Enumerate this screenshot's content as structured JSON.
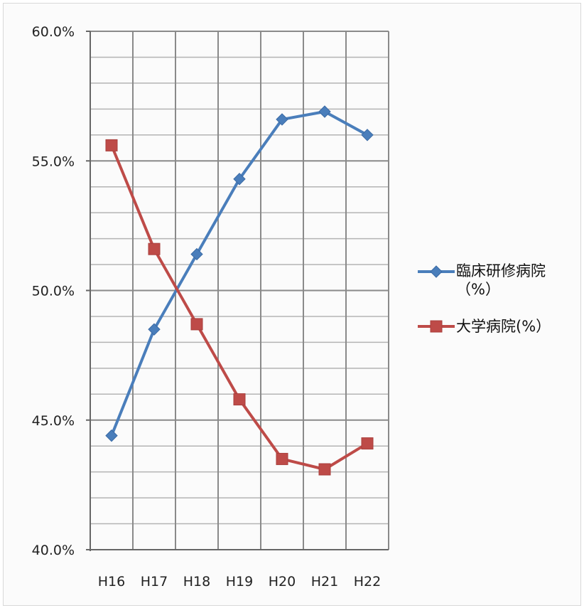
{
  "chart_data": {
    "type": "line",
    "categories": [
      "H16",
      "H17",
      "H18",
      "H19",
      "H20",
      "H21",
      "H22"
    ],
    "series": [
      {
        "name": "臨床研修病院\n（%）",
        "values": [
          44.4,
          48.5,
          51.4,
          54.3,
          56.6,
          56.9,
          56.0
        ],
        "color": "#4a7ebb",
        "marker": "diamond"
      },
      {
        "name": "大学病院(%）",
        "values": [
          55.6,
          51.6,
          48.7,
          45.8,
          43.5,
          43.1,
          44.1
        ],
        "color": "#be4b48",
        "marker": "square"
      }
    ],
    "yticks": [
      "40.0%",
      "45.0%",
      "50.0%",
      "55.0%",
      "60.0%"
    ],
    "ylim": [
      40,
      60
    ],
    "title": "",
    "xlabel": "",
    "ylabel": "",
    "grid": true,
    "legend_position": "right"
  }
}
